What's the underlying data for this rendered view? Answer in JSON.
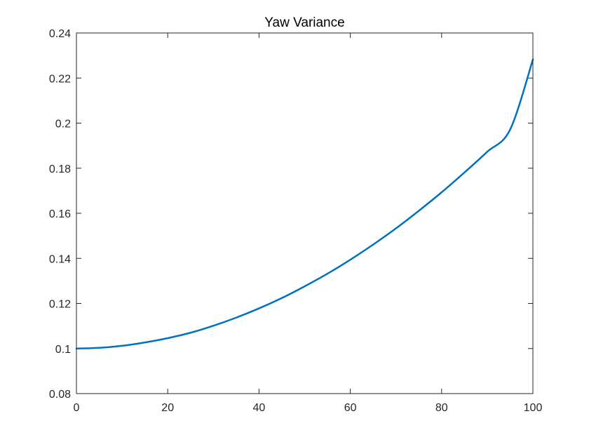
{
  "chart_data": {
    "type": "line",
    "title": "Yaw Variance",
    "xlabel": "",
    "ylabel": "",
    "xlim": [
      0,
      100
    ],
    "ylim": [
      0.08,
      0.24
    ],
    "x_ticks": [
      0,
      20,
      40,
      60,
      80,
      100
    ],
    "x_tick_labels": [
      "0",
      "20",
      "40",
      "60",
      "80",
      "100"
    ],
    "y_ticks": [
      0.08,
      0.1,
      0.12,
      0.14,
      0.16,
      0.18,
      0.2,
      0.22,
      0.24
    ],
    "y_tick_labels": [
      "0.08",
      "0.1",
      "0.12",
      "0.14",
      "0.16",
      "0.18",
      "0.2",
      "0.22",
      "0.24"
    ],
    "grid": false,
    "series": [
      {
        "name": "Yaw Variance",
        "color": "#0072BD",
        "x": [
          0,
          5,
          10,
          15,
          20,
          25,
          30,
          35,
          40,
          45,
          50,
          55,
          60,
          65,
          70,
          75,
          80,
          85,
          90,
          95,
          100
        ],
        "y": [
          0.1,
          0.1003,
          0.1012,
          0.1027,
          0.1046,
          0.107,
          0.1101,
          0.1137,
          0.1178,
          0.1224,
          0.1276,
          0.1332,
          0.1394,
          0.1461,
          0.1533,
          0.1611,
          0.1693,
          0.1781,
          0.1873,
          0.1971,
          0.2282
        ]
      }
    ]
  }
}
